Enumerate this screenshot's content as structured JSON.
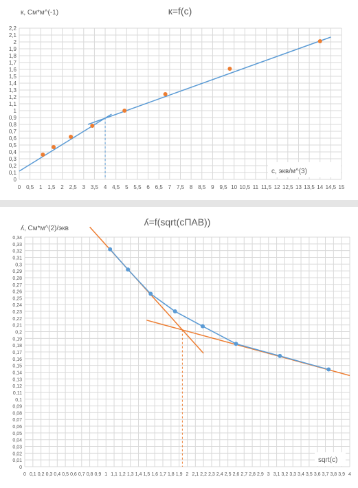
{
  "chart_data": [
    {
      "type": "scatter",
      "title": "к=f(c)",
      "ylabel": "к, См*м^(-1)",
      "xlabel": "с, экв/м^(3)",
      "xlim": [
        0,
        15
      ],
      "ylim": [
        0,
        2.2
      ],
      "grid": true,
      "x_ticks": [
        "0",
        "0,5",
        "1",
        "1,5",
        "2",
        "2,5",
        "3",
        "3,5",
        "4",
        "4,5",
        "5",
        "5,5",
        "6",
        "6,5",
        "7",
        "7,5",
        "8",
        "8,5",
        "9",
        "9,5",
        "10",
        "10,5",
        "11",
        "11,5",
        "12",
        "12,5",
        "13",
        "13,5",
        "14",
        "14,5",
        "15"
      ],
      "y_ticks": [
        "0",
        "0,1",
        "0,2",
        "0,3",
        "0,4",
        "0,5",
        "0,6",
        "0,7",
        "0,8",
        "0,9",
        "1",
        "1,1",
        "1,2",
        "1,3",
        "1,4",
        "1,5",
        "1,6",
        "1,7",
        "1,8",
        "1,9",
        "2",
        "2,1",
        "2,2"
      ],
      "points": [
        {
          "x": 1.1,
          "y": 0.36
        },
        {
          "x": 1.6,
          "y": 0.47
        },
        {
          "x": 2.4,
          "y": 0.62
        },
        {
          "x": 3.4,
          "y": 0.78
        },
        {
          "x": 4.9,
          "y": 1.0
        },
        {
          "x": 6.8,
          "y": 1.24
        },
        {
          "x": 9.8,
          "y": 1.61
        },
        {
          "x": 14.0,
          "y": 2.01
        }
      ],
      "lines": [
        {
          "x1": 0,
          "y1": 0.12,
          "x2": 4.3,
          "y2": 0.95
        },
        {
          "x1": 3.2,
          "y1": 0.8,
          "x2": 14.5,
          "y2": 2.07
        }
      ],
      "cmc_x": 4.0,
      "cmc_y": 0.9
    },
    {
      "type": "scatter",
      "title": "ʎ=f(sqrt(cПАВ))",
      "ylabel": "ʎ, См*м^(2)/экв",
      "xlabel": "sqrt(c)",
      "xlim": [
        0,
        4
      ],
      "ylim": [
        0,
        0.34
      ],
      "grid": true,
      "x_ticks": [
        "0",
        "0,1",
        "0,2",
        "0,3",
        "0,4",
        "0,5",
        "0,6",
        "0,7",
        "0,8",
        "0,9",
        "1",
        "1,1",
        "1,2",
        "1,3",
        "1,4",
        "1,5",
        "1,6",
        "1,7",
        "1,8",
        "1,9",
        "2",
        "2,1",
        "2,2",
        "2,3",
        "2,4",
        "2,5",
        "2,6",
        "2,7",
        "2,8",
        "2,9",
        "3",
        "3,1",
        "3,2",
        "3,3",
        "3,4",
        "3,5",
        "3,6",
        "3,7",
        "3,8",
        "3,9",
        "4"
      ],
      "y_ticks": [
        "0",
        "0,01",
        "0,02",
        "0,03",
        "0,04",
        "0,05",
        "0,06",
        "0,07",
        "0,08",
        "0,09",
        "0,1",
        "0,11",
        "0,12",
        "0,13",
        "0,14",
        "0,15",
        "0,16",
        "0,17",
        "0,18",
        "0,19",
        "0,2",
        "0,21",
        "0,22",
        "0,23",
        "0,24",
        "0,25",
        "0,26",
        "0,27",
        "0,28",
        "0,29",
        "0,3",
        "0,31",
        "0,32",
        "0,33",
        "0,34"
      ],
      "points": [
        {
          "x": 1.05,
          "y": 0.322
        },
        {
          "x": 1.27,
          "y": 0.292
        },
        {
          "x": 1.55,
          "y": 0.256
        },
        {
          "x": 1.85,
          "y": 0.23
        },
        {
          "x": 2.19,
          "y": 0.208
        },
        {
          "x": 2.6,
          "y": 0.182
        },
        {
          "x": 3.14,
          "y": 0.164
        },
        {
          "x": 3.74,
          "y": 0.144
        }
      ],
      "lines": [
        {
          "x1": 0.8,
          "y1": 0.355,
          "x2": 2.2,
          "y2": 0.168
        },
        {
          "x1": 1.5,
          "y1": 0.217,
          "x2": 4.0,
          "y2": 0.135
        }
      ],
      "cmc_x": 1.94,
      "cmc_y": 0.203
    }
  ],
  "colors": {
    "axis_text": "#595959",
    "grid": "#d9d9d9",
    "blue": "#5b9bd5",
    "orange": "#ed7d31"
  }
}
